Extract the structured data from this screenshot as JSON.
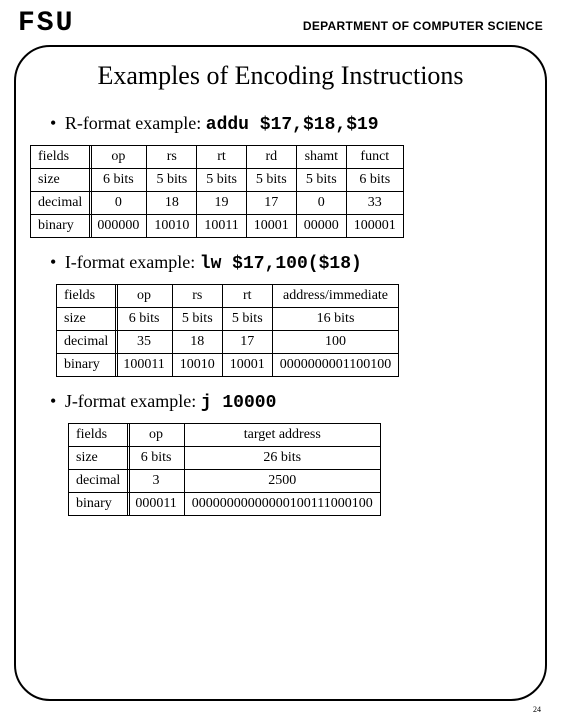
{
  "header": {
    "logo": "FSU",
    "dept": "DEPARTMENT OF COMPUTER SCIENCE"
  },
  "title": "Examples of Encoding Instructions",
  "ex1": {
    "prefix": "R-format example:  ",
    "code": "addu $17,$18,$19",
    "cols": [
      "fields",
      "op",
      "rs",
      "rt",
      "rd",
      "shamt",
      "funct"
    ],
    "size": [
      "size",
      "6 bits",
      "5 bits",
      "5 bits",
      "5 bits",
      "5 bits",
      "6 bits"
    ],
    "decimal": [
      "decimal",
      "0",
      "18",
      "19",
      "17",
      "0",
      "33"
    ],
    "binary": [
      "binary",
      "000000",
      "10010",
      "10011",
      "10001",
      "00000",
      "100001"
    ]
  },
  "ex2": {
    "prefix": "I-format example:  ",
    "code": "lw $17,100($18)",
    "cols": [
      "fields",
      "op",
      "rs",
      "rt",
      "address/immediate"
    ],
    "size": [
      "size",
      "6 bits",
      "5 bits",
      "5 bits",
      "16 bits"
    ],
    "decimal": [
      "decimal",
      "35",
      "18",
      "17",
      "100"
    ],
    "binary": [
      "binary",
      "100011",
      "10010",
      "10001",
      "0000000001100100"
    ]
  },
  "ex3": {
    "prefix": "J-format example:  ",
    "code": "j 10000",
    "cols": [
      "fields",
      "op",
      "target address"
    ],
    "size": [
      "size",
      "6 bits",
      "26 bits"
    ],
    "decimal": [
      "decimal",
      "3",
      "2500"
    ],
    "binary": [
      "binary",
      "000011",
      "00000000000000100111000100"
    ]
  },
  "pagenum": "24"
}
